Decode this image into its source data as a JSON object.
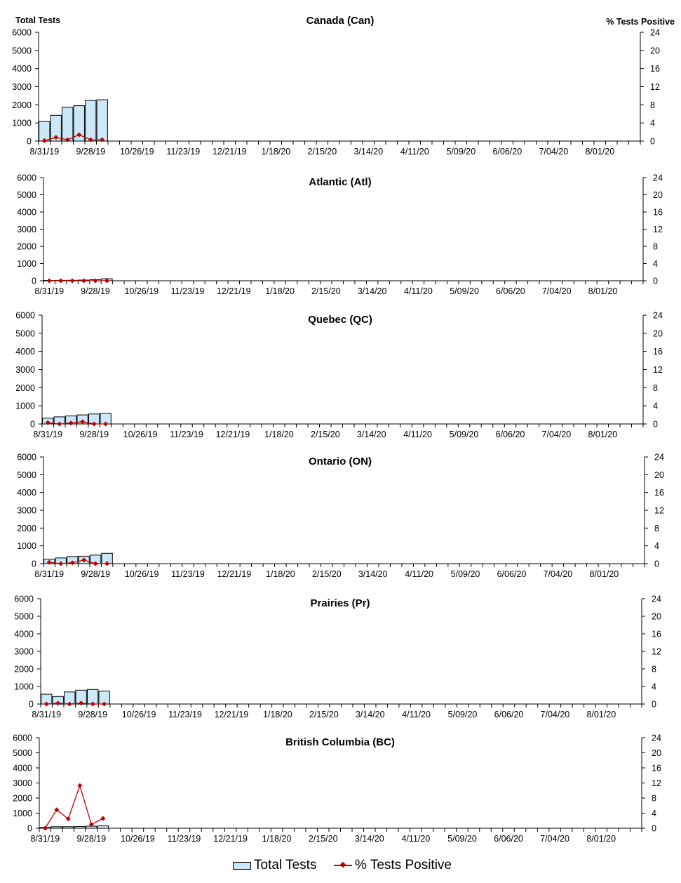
{
  "left_axis_title": "Total Tests",
  "right_axis_title": "% Tests Positive",
  "legend": {
    "bar_label": "Total Tests",
    "line_label": "% Tests Positive"
  },
  "colors": {
    "bar_fill": "#cce8f8",
    "bar_stroke": "#000000",
    "line": "#c00000"
  },
  "chart_data": [
    {
      "type": "bar",
      "title": "Canada (Can)",
      "x_tick_labels": [
        "8/31/19",
        "9/28/19",
        "10/26/19",
        "11/23/19",
        "12/21/19",
        "1/18/20",
        "2/15/20",
        "3/14/20",
        "4/11/20",
        "5/09/20",
        "6/06/20",
        "7/04/20",
        "8/01/20"
      ],
      "series": [
        {
          "name": "Total Tests",
          "type": "bar",
          "axis": "left",
          "values": [
            1080,
            1420,
            1860,
            1950,
            2240,
            2280
          ]
        },
        {
          "name": "% Tests Positive",
          "type": "line",
          "axis": "right",
          "values": [
            0.1,
            0.8,
            0.3,
            1.4,
            0.3,
            0.3
          ]
        }
      ],
      "ylim_left": [
        0,
        6000
      ],
      "yticks_left": [
        0,
        1000,
        2000,
        3000,
        4000,
        5000,
        6000
      ],
      "ylim_right": [
        0,
        24
      ],
      "yticks_right": [
        0,
        4,
        8,
        12,
        16,
        20,
        24
      ]
    },
    {
      "type": "bar",
      "title": "Atlantic (Atl)",
      "x_tick_labels": [
        "8/31/19",
        "9/28/19",
        "10/26/19",
        "11/23/19",
        "12/21/19",
        "1/18/20",
        "2/15/20",
        "3/14/20",
        "4/11/20",
        "5/09/20",
        "6/06/20",
        "7/04/20",
        "8/01/20"
      ],
      "series": [
        {
          "name": "Total Tests",
          "type": "bar",
          "axis": "left",
          "values": [
            20,
            25,
            30,
            40,
            60,
            120
          ]
        },
        {
          "name": "% Tests Positive",
          "type": "line",
          "axis": "right",
          "values": [
            0,
            0,
            0,
            0,
            0,
            0
          ]
        }
      ],
      "ylim_left": [
        0,
        6000
      ],
      "yticks_left": [
        0,
        1000,
        2000,
        3000,
        4000,
        5000,
        6000
      ],
      "ylim_right": [
        0,
        24
      ],
      "yticks_right": [
        0,
        4,
        8,
        12,
        16,
        20,
        24
      ]
    },
    {
      "type": "bar",
      "title": "Quebec (QC)",
      "x_tick_labels": [
        "8/31/19",
        "9/28/19",
        "10/26/19",
        "11/23/19",
        "12/21/19",
        "1/18/20",
        "2/15/20",
        "3/14/20",
        "4/11/20",
        "5/09/20",
        "6/06/20",
        "7/04/20",
        "8/01/20"
      ],
      "series": [
        {
          "name": "Total Tests",
          "type": "bar",
          "axis": "left",
          "values": [
            320,
            390,
            440,
            500,
            550,
            580
          ]
        },
        {
          "name": "% Tests Positive",
          "type": "line",
          "axis": "right",
          "values": [
            0.3,
            0,
            0.2,
            0.5,
            0,
            0
          ]
        }
      ],
      "ylim_left": [
        0,
        6000
      ],
      "yticks_left": [
        0,
        1000,
        2000,
        3000,
        4000,
        5000,
        6000
      ],
      "ylim_right": [
        0,
        24
      ],
      "yticks_right": [
        0,
        4,
        8,
        12,
        16,
        20,
        24
      ]
    },
    {
      "type": "bar",
      "title": "Ontario (ON)",
      "x_tick_labels": [
        "8/31/19",
        "9/28/19",
        "10/26/19",
        "11/23/19",
        "12/21/19",
        "1/18/20",
        "2/15/20",
        "3/14/20",
        "4/11/20",
        "5/09/20",
        "6/06/20",
        "7/04/20",
        "8/01/20"
      ],
      "series": [
        {
          "name": "Total Tests",
          "type": "bar",
          "axis": "left",
          "values": [
            250,
            320,
            400,
            420,
            480,
            580
          ]
        },
        {
          "name": "% Tests Positive",
          "type": "line",
          "axis": "right",
          "values": [
            0.3,
            0,
            0.2,
            0.8,
            0,
            0
          ]
        }
      ],
      "ylim_left": [
        0,
        6000
      ],
      "yticks_left": [
        0,
        1000,
        2000,
        3000,
        4000,
        5000,
        6000
      ],
      "ylim_right": [
        0,
        24
      ],
      "yticks_right": [
        0,
        4,
        8,
        12,
        16,
        20,
        24
      ]
    },
    {
      "type": "bar",
      "title": "Prairies (Pr)",
      "x_tick_labels": [
        "8/31/19",
        "9/28/19",
        "10/26/19",
        "11/23/19",
        "12/21/19",
        "1/18/20",
        "2/15/20",
        "3/14/20",
        "4/11/20",
        "5/09/20",
        "6/06/20",
        "7/04/20",
        "8/01/20"
      ],
      "series": [
        {
          "name": "Total Tests",
          "type": "bar",
          "axis": "left",
          "values": [
            560,
            430,
            690,
            790,
            830,
            740
          ]
        },
        {
          "name": "% Tests Positive",
          "type": "line",
          "axis": "right",
          "values": [
            0,
            0.2,
            0,
            0.2,
            0,
            0
          ]
        }
      ],
      "ylim_left": [
        0,
        6000
      ],
      "yticks_left": [
        0,
        1000,
        2000,
        3000,
        4000,
        5000,
        6000
      ],
      "ylim_right": [
        0,
        24
      ],
      "yticks_right": [
        0,
        4,
        8,
        12,
        16,
        20,
        24
      ]
    },
    {
      "type": "bar",
      "title": "British Columbia (BC)",
      "x_tick_labels": [
        "8/31/19",
        "9/28/19",
        "10/26/19",
        "11/23/19",
        "12/21/19",
        "1/18/20",
        "2/15/20",
        "3/14/20",
        "4/11/20",
        "5/09/20",
        "6/06/20",
        "7/04/20",
        "8/01/20"
      ],
      "series": [
        {
          "name": "Total Tests",
          "type": "bar",
          "axis": "left",
          "values": [
            60,
            100,
            100,
            110,
            140,
            160
          ]
        },
        {
          "name": "% Tests Positive",
          "type": "line",
          "axis": "right",
          "values": [
            0,
            4.9,
            2.5,
            11.3,
            1.0,
            2.6
          ]
        }
      ],
      "ylim_left": [
        0,
        6000
      ],
      "yticks_left": [
        0,
        1000,
        2000,
        3000,
        4000,
        5000,
        6000
      ],
      "ylim_right": [
        0,
        24
      ],
      "yticks_right": [
        0,
        4,
        8,
        12,
        16,
        20,
        24
      ]
    }
  ]
}
